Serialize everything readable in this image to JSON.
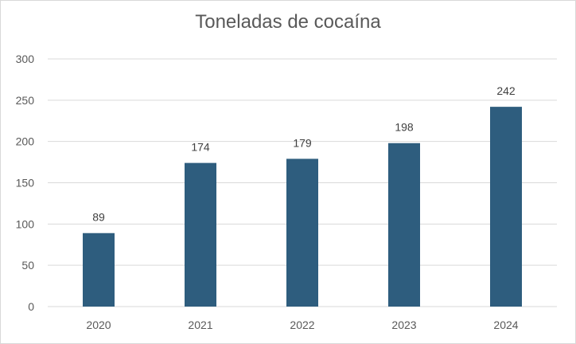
{
  "chart_data": {
    "type": "bar",
    "title": "Toneladas de cocaína",
    "categories": [
      "2020",
      "2021",
      "2022",
      "2023",
      "2024"
    ],
    "values": [
      89,
      174,
      179,
      198,
      242
    ],
    "ylim": [
      0,
      300
    ],
    "yticks": [
      0,
      50,
      100,
      150,
      200,
      250,
      300
    ],
    "grid": true,
    "legend": "none",
    "data_labels": true,
    "bar_color": "#2e5d7e",
    "grid_color": "#d9d9d9"
  }
}
